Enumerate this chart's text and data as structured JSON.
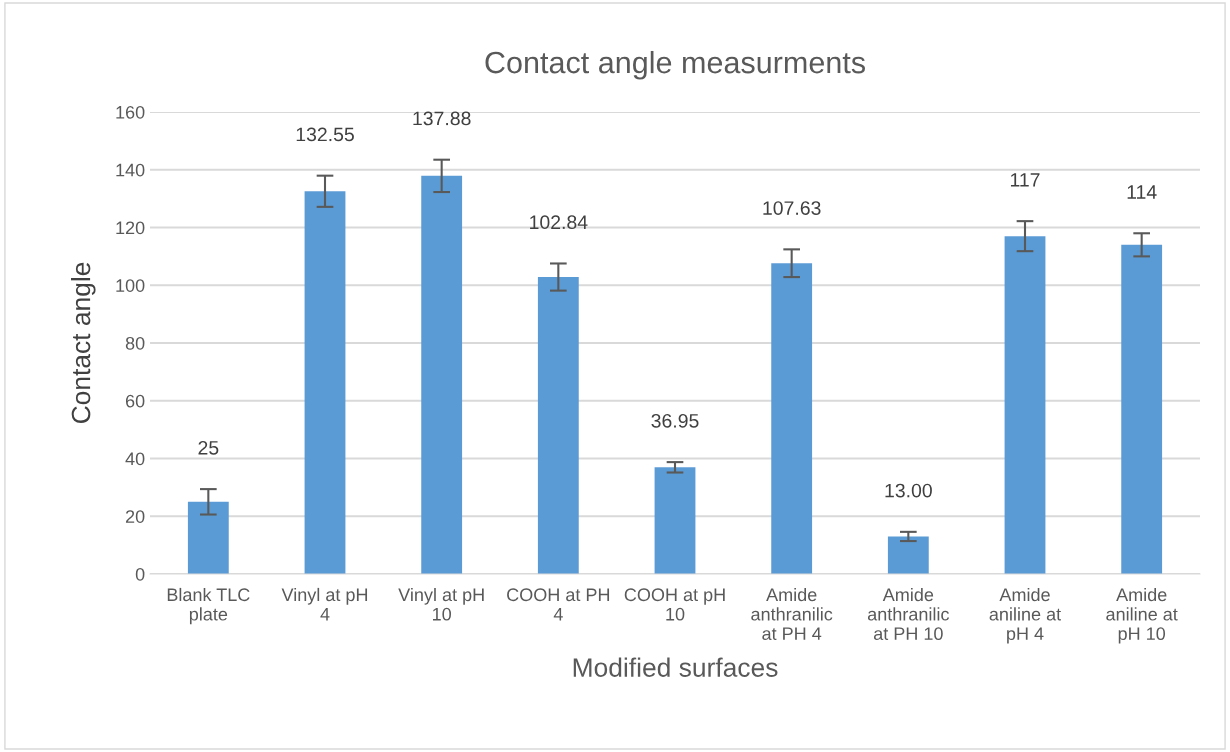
{
  "chart_data": {
    "type": "bar",
    "title": "Contact angle measurments",
    "xlabel": "Modified surfaces",
    "ylabel": "Contact angle",
    "categories": [
      "Blank TLC\nplate",
      "Vinyl at pH\n4",
      "Vinyl at pH\n10",
      "COOH at PH\n4",
      "COOH at pH\n10",
      "Amide\nanthranilic\nat PH 4",
      "Amide\nanthranilic\nat PH 10",
      "Amide\naniline at\npH 4",
      "Amide\naniline at\npH 10"
    ],
    "values": [
      25,
      132.55,
      137.88,
      102.84,
      36.95,
      107.63,
      13.0,
      117,
      114
    ],
    "errors": [
      4.4,
      5.4,
      5.6,
      4.7,
      1.8,
      4.8,
      1.6,
      5.2,
      4.0
    ],
    "value_labels": [
      "25",
      "132.55",
      "137.88",
      "102.84",
      "36.95",
      "107.63",
      "13.00",
      "117",
      "114"
    ],
    "color": "#5b9bd5",
    "ylim": [
      0,
      160
    ],
    "yticks": [
      0,
      20,
      40,
      60,
      80,
      100,
      120,
      140,
      160
    ],
    "grid": "y"
  }
}
